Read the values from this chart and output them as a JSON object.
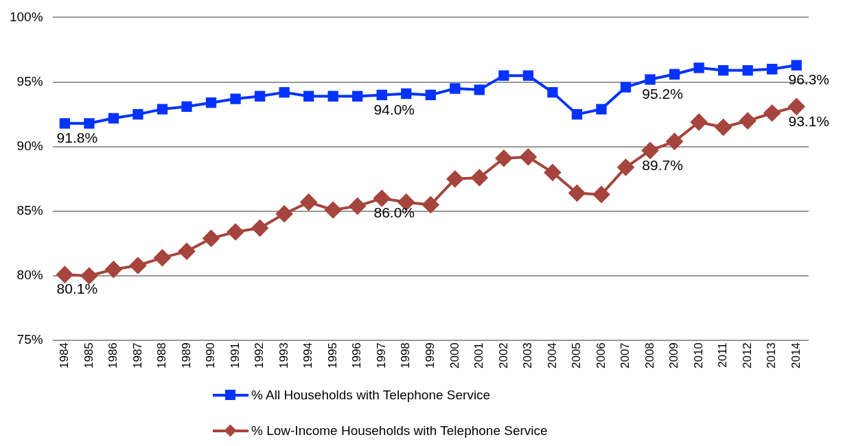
{
  "chart_data": {
    "type": "line",
    "categories": [
      "1984",
      "1985",
      "1986",
      "1987",
      "1988",
      "1989",
      "1990",
      "1991",
      "1992",
      "1993",
      "1994",
      "1995",
      "1996",
      "1997",
      "1998",
      "1999",
      "2000",
      "2001",
      "2002",
      "2003",
      "2004",
      "2005",
      "2006",
      "2007",
      "2008",
      "2009",
      "2010",
      "2011",
      "2012",
      "2013",
      "2014"
    ],
    "series": [
      {
        "name": "% All Households with Telephone Service",
        "color": "#0433ff",
        "marker": "square",
        "values": [
          91.8,
          91.8,
          92.2,
          92.5,
          92.9,
          93.1,
          93.4,
          93.7,
          93.9,
          94.2,
          93.9,
          93.9,
          93.9,
          94.0,
          94.1,
          94.0,
          94.5,
          94.4,
          95.5,
          95.5,
          94.2,
          92.5,
          92.9,
          94.6,
          95.2,
          95.6,
          96.1,
          95.9,
          95.9,
          96.0,
          96.3
        ]
      },
      {
        "name": "% Low-Income Households with Telephone Service",
        "color": "#a5453d",
        "marker": "diamond",
        "values": [
          80.1,
          80.0,
          80.5,
          80.8,
          81.4,
          81.9,
          82.9,
          83.4,
          83.7,
          84.8,
          85.7,
          85.1,
          85.4,
          86.0,
          85.7,
          85.5,
          87.5,
          87.6,
          89.1,
          89.2,
          88.0,
          86.4,
          86.3,
          88.4,
          89.7,
          90.4,
          91.9,
          91.5,
          92.0,
          92.6,
          93.1
        ]
      }
    ],
    "ylim": [
      75,
      100
    ],
    "yticks": [
      {
        "value": 75,
        "label": "75%"
      },
      {
        "value": 80,
        "label": "80%"
      },
      {
        "value": 85,
        "label": "85%"
      },
      {
        "value": 90,
        "label": "90%"
      },
      {
        "value": 95,
        "label": "95%"
      },
      {
        "value": 100,
        "label": "100%"
      }
    ],
    "grid": "y",
    "legend": "bottom",
    "line_style": "solid",
    "annotations": [
      {
        "text": "91.8%",
        "x": "1984",
        "y": 91.8
      },
      {
        "text": "94.0%",
        "x": "1997",
        "y": 94.0
      },
      {
        "text": "95.2%",
        "x": "2008",
        "y": 95.2
      },
      {
        "text": "96.3%",
        "x": "2014",
        "y": 96.3
      },
      {
        "text": "80.1%",
        "x": "1984",
        "y": 80.1
      },
      {
        "text": "86.0%",
        "x": "1997",
        "y": 86.0
      },
      {
        "text": "89.7%",
        "x": "2008",
        "y": 89.7
      },
      {
        "text": "93.1%",
        "x": "2014",
        "y": 93.1
      }
    ]
  }
}
